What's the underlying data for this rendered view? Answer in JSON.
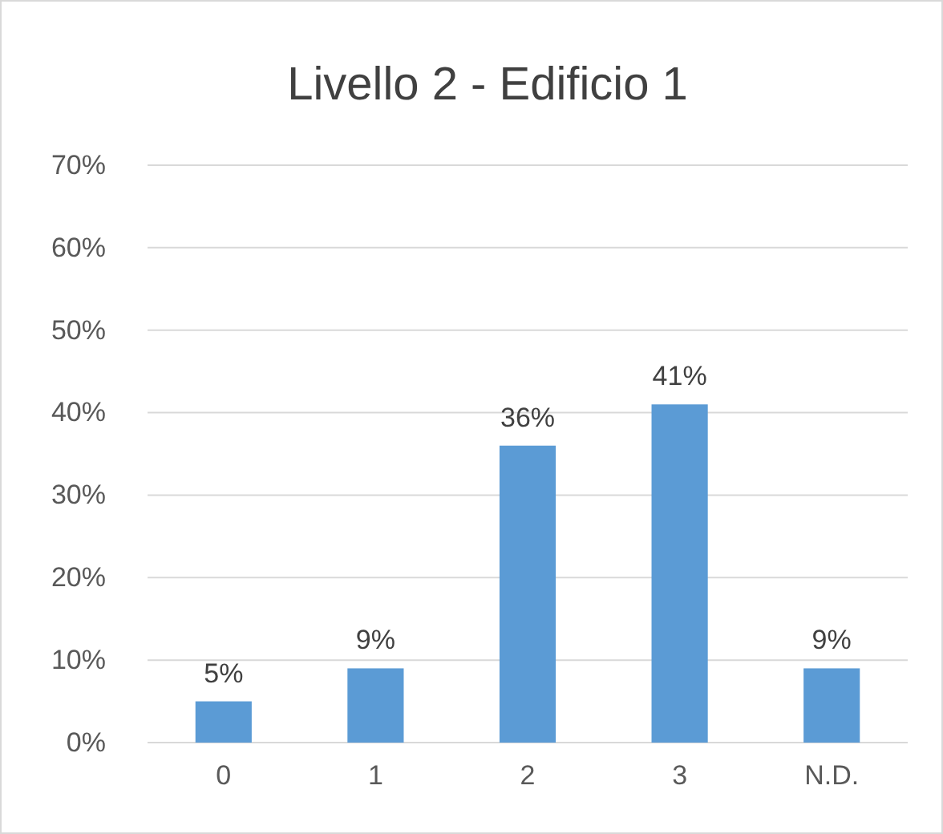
{
  "chart_data": {
    "type": "bar",
    "title": "Livello 2 - Edificio 1",
    "categories": [
      "0",
      "1",
      "2",
      "3",
      "N.D."
    ],
    "values": [
      5,
      9,
      36,
      41,
      9
    ],
    "value_labels": [
      "5%",
      "9%",
      "36%",
      "41%",
      "9%"
    ],
    "color": "#5b9bd5",
    "ylim": [
      0,
      70
    ],
    "yticks": [
      {
        "value": 0,
        "label": "0%"
      },
      {
        "value": 10,
        "label": "10%"
      },
      {
        "value": 20,
        "label": "20%"
      },
      {
        "value": 30,
        "label": "30%"
      },
      {
        "value": 40,
        "label": "40%"
      },
      {
        "value": 50,
        "label": "50%"
      },
      {
        "value": 60,
        "label": "60%"
      },
      {
        "value": 70,
        "label": "70%"
      }
    ],
    "grid": "y"
  }
}
